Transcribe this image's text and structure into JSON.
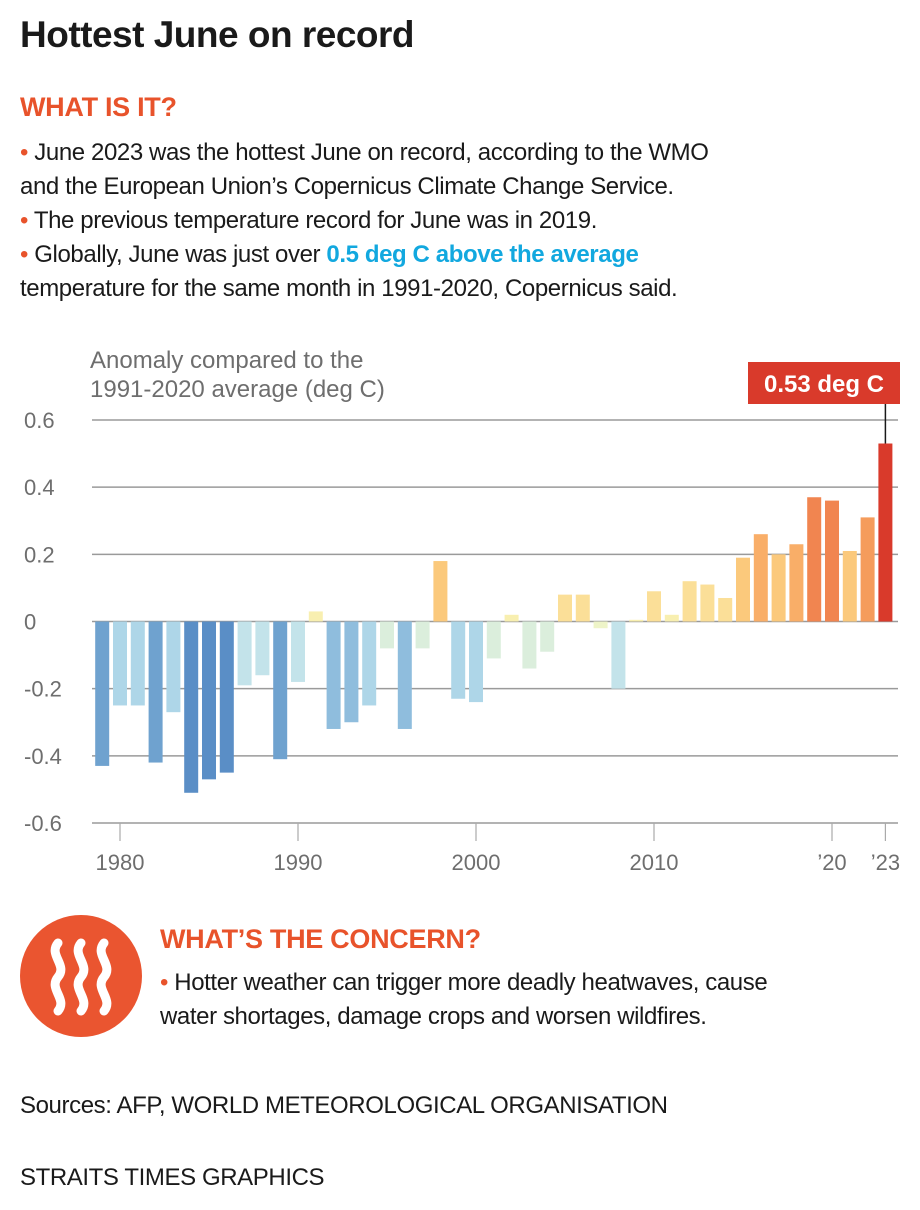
{
  "title": "Hottest June on record",
  "what_is_it": {
    "heading": "WHAT IS IT?",
    "bullet_glyph": "•",
    "lines": [
      {
        "text": " June 2023 was the hottest June on record, according to the WMO"
      },
      {
        "text": "and the European Union’s Copernicus Climate Change Service."
      },
      {
        "text": " The previous temperature record for June was in 2019."
      },
      {
        "pre": " Globally, June was just over ",
        "highlight": "0.5 deg C above the average"
      },
      {
        "text": "temperature for the same month in 1991-2020, Copernicus said."
      }
    ]
  },
  "colors": {
    "accent": "#e8532b",
    "highlight": "#12a8df",
    "record_bar": "#d93a2b"
  },
  "chart_data": {
    "type": "bar",
    "title": "",
    "ylabel": "Anomaly compared to the 1991-2020 average (deg C)",
    "ylabel_lines": [
      "Anomaly compared to the",
      "1991-2020 average (deg C)"
    ],
    "xlabel": "",
    "ylim": [
      -0.6,
      0.6
    ],
    "yticks": [
      0.6,
      0.4,
      0.2,
      0,
      -0.2,
      -0.4,
      -0.6
    ],
    "ytick_labels": [
      "0.6",
      "0.4",
      "0.2",
      "0",
      "-0.2",
      "-0.4",
      "-0.6"
    ],
    "xticks": [
      1980,
      1990,
      2000,
      2010,
      2020,
      2023
    ],
    "xtick_labels": [
      "1980",
      "1990",
      "2000",
      "2010",
      "’20",
      "’23"
    ],
    "grid": true,
    "categories": [
      1979,
      1980,
      1981,
      1982,
      1983,
      1984,
      1985,
      1986,
      1987,
      1988,
      1989,
      1990,
      1991,
      1992,
      1993,
      1994,
      1995,
      1996,
      1997,
      1998,
      1999,
      2000,
      2001,
      2002,
      2003,
      2004,
      2005,
      2006,
      2007,
      2008,
      2009,
      2010,
      2011,
      2012,
      2013,
      2014,
      2015,
      2016,
      2017,
      2018,
      2019,
      2020,
      2021,
      2022,
      2023
    ],
    "values": [
      -0.43,
      -0.25,
      -0.25,
      -0.42,
      -0.27,
      -0.51,
      -0.47,
      -0.45,
      -0.19,
      -0.16,
      -0.41,
      -0.18,
      0.03,
      -0.32,
      -0.3,
      -0.25,
      -0.08,
      -0.32,
      -0.08,
      0.18,
      -0.23,
      -0.24,
      -0.11,
      0.02,
      -0.14,
      -0.09,
      0.08,
      0.08,
      -0.02,
      -0.2,
      0.005,
      0.09,
      0.02,
      0.12,
      0.11,
      0.07,
      0.19,
      0.26,
      0.2,
      0.23,
      0.37,
      0.36,
      0.21,
      0.31,
      0.53
    ],
    "annotation": {
      "year": 2023,
      "label": "0.53 deg C"
    }
  },
  "concern": {
    "icon": "heat-waves-icon",
    "heading": "WHAT’S THE CONCERN?",
    "bullet_glyph": "•",
    "line1": " Hotter weather can trigger more deadly heatwaves, cause",
    "line2": "water shortages, damage crops and worsen wildfires."
  },
  "sources": "Sources:  AFP, WORLD METEOROLOGICAL ORGANISATION",
  "credit": "STRAITS TIMES GRAPHICS"
}
